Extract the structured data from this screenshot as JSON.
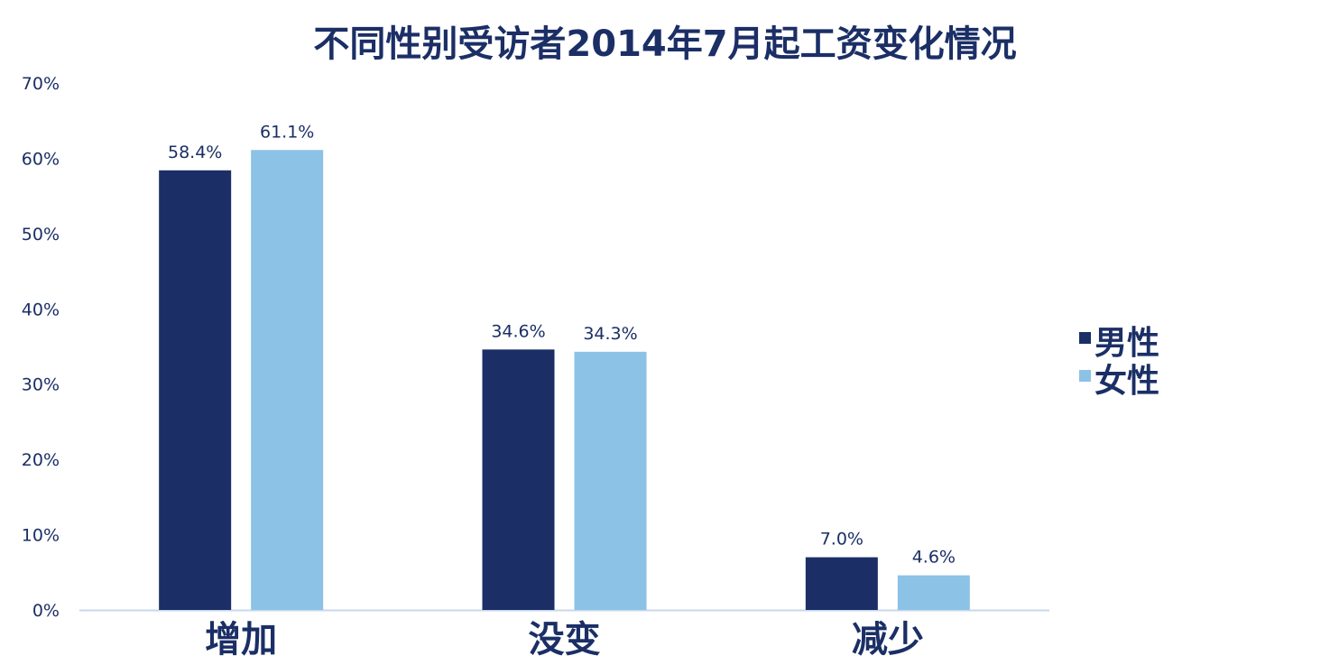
{
  "chart_data": {
    "type": "bar",
    "title": "不同性别受访者2014年7月起工资变化情况",
    "categories": [
      "增加",
      "没变",
      "减少"
    ],
    "series": [
      {
        "name": "男性",
        "values": [
          58.4,
          34.6,
          7.0
        ],
        "labels": [
          "58.4%",
          "34.6%",
          "7.0%"
        ],
        "color": "#1b2f66"
      },
      {
        "name": "女性",
        "values": [
          61.1,
          34.3,
          4.6
        ],
        "labels": [
          "61.1%",
          "34.3%",
          "4.6%"
        ],
        "color": "#8cc2e6"
      }
    ],
    "ylim": [
      0,
      70
    ],
    "yticks": [
      0,
      10,
      20,
      30,
      40,
      50,
      60,
      70
    ],
    "ytick_labels": [
      "0%",
      "10%",
      "20%",
      "30%",
      "40%",
      "50%",
      "60%",
      "70%"
    ],
    "grid": false,
    "legend_position": "right",
    "axis_color": "#c9d7ec",
    "text_color": "#1b2f66"
  }
}
